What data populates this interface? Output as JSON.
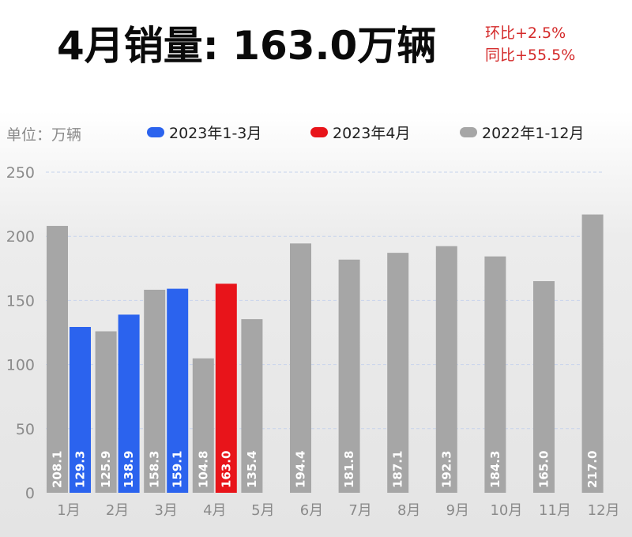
{
  "header": {
    "title": "4月销量: 163.0万辆",
    "mom": "环比+2.5%",
    "yoy": "同比+55.5%"
  },
  "unit_label": "单位：万辆",
  "colors": {
    "blue": "#2b63ee",
    "red": "#e8141a",
    "gray": "#a6a6a6",
    "title_red": "#d42a2a"
  },
  "chart_data": {
    "type": "bar",
    "categories": [
      "1月",
      "2月",
      "3月",
      "4月",
      "5月",
      "6月",
      "7月",
      "8月",
      "9月",
      "10月",
      "11月",
      "12月"
    ],
    "series": [
      {
        "name": "2022年1-12月",
        "values": [
          208.1,
          125.9,
          158.3,
          104.8,
          135.4,
          194.4,
          181.8,
          187.1,
          192.3,
          184.3,
          165.0,
          217.0
        ],
        "color": "#a6a6a6"
      },
      {
        "name": "2023年1-3月",
        "values": [
          129.3,
          138.9,
          159.1,
          null,
          null,
          null,
          null,
          null,
          null,
          null,
          null,
          null
        ],
        "color": "#2b63ee"
      },
      {
        "name": "2023年4月",
        "values": [
          null,
          null,
          null,
          163.0,
          null,
          null,
          null,
          null,
          null,
          null,
          null,
          null
        ],
        "color": "#e8141a"
      }
    ],
    "ylim": [
      0,
      250
    ],
    "yticks": [
      "0",
      "50",
      "100",
      "150",
      "200",
      "250"
    ],
    "grid": true,
    "legend_position": "top",
    "ylabel": "",
    "xlabel": ""
  }
}
